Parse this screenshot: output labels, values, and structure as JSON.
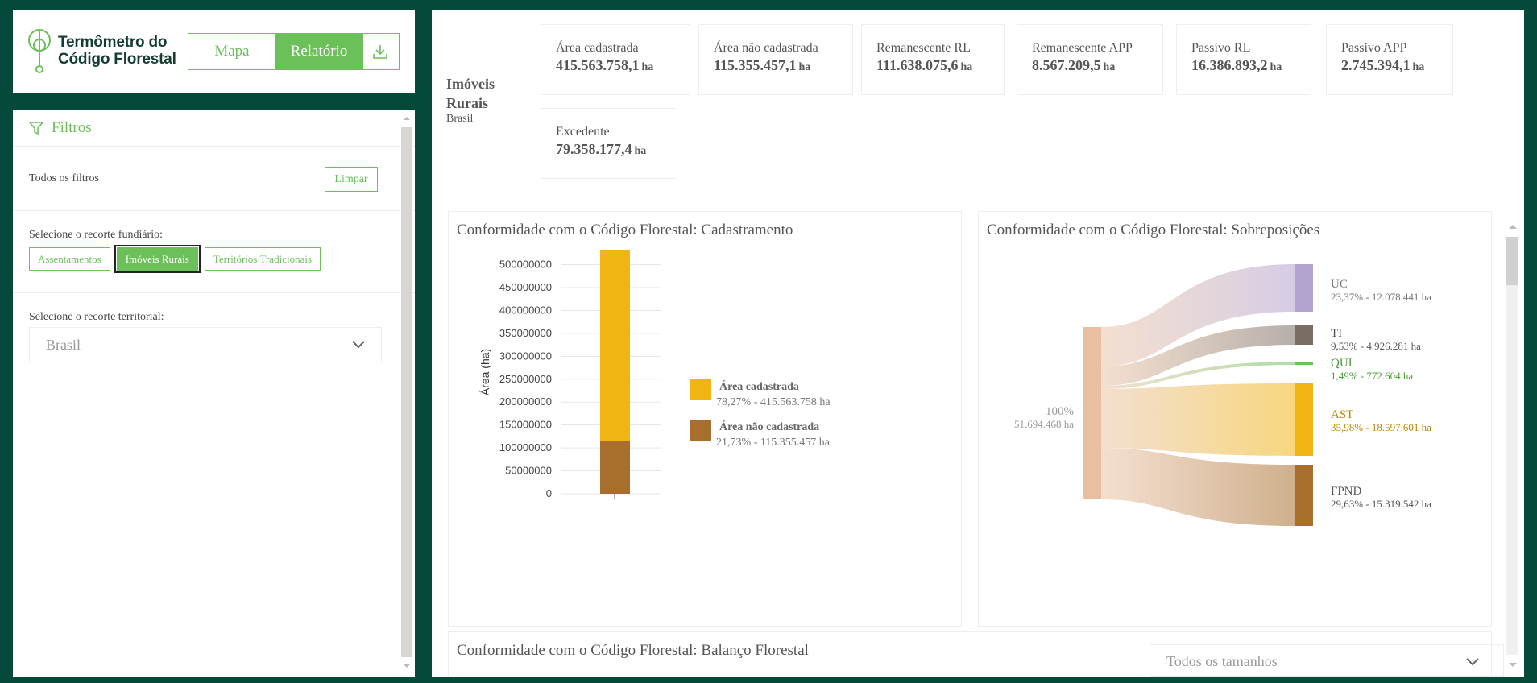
{
  "brand": {
    "name_line1": "Termômetro do",
    "name_line2": "Código Florestal"
  },
  "view_toggle": {
    "mapa": "Mapa",
    "relatorio": "Relatório"
  },
  "colors": {
    "accent": "#6cc05a",
    "frame": "#05493a",
    "cadastrada": "#f0b512",
    "nao_cadastrada": "#a86e2e"
  },
  "filters": {
    "title": "Filtros",
    "all_label": "Todos os filtros",
    "clear_label": "Limpar",
    "fundiario_label": "Selecione o recorte fundiário:",
    "fundiario_options": [
      "Assentamentos",
      "Imóveis Rurais",
      "Territórios Tradicionais"
    ],
    "fundiario_selected": "Imóveis Rurais",
    "territorial_label": "Selecione o recorte territorial:",
    "territorial_value": "Brasil"
  },
  "summary": {
    "entity_name": "Imóveis Rurais",
    "entity_sub": "Brasil",
    "unit": "ha",
    "stats": [
      {
        "label": "Área cadastrada",
        "value": "415.563.758,1"
      },
      {
        "label": "Área não cadastrada",
        "value": "115.355.457,1"
      },
      {
        "label": "Remanescente RL",
        "value": "111.638.075,6"
      },
      {
        "label": "Remanescente APP",
        "value": "8.567.209,5"
      },
      {
        "label": "Passivo RL",
        "value": "16.386.893,2"
      },
      {
        "label": "Passivo APP",
        "value": "2.745.394,1"
      },
      {
        "label": "Excedente",
        "value": "79.358.177,4"
      }
    ]
  },
  "cadastro_card": {
    "title": "Conformidade com o Código Florestal: Cadastramento",
    "legend": [
      {
        "name": "Área cadastrada",
        "detail": "78,27% - 415.563.758 ha"
      },
      {
        "name": "Área não cadastrada",
        "detail": "21,73% - 115.355.457 ha"
      }
    ]
  },
  "sobreposicoes_card": {
    "title": "Conformidade com o Código Florestal: Sobreposições",
    "source_pct": "100%",
    "source_value": "51.694.468 ha",
    "targets": [
      {
        "name": "UC",
        "detail": "23,37% - 12.078.441 ha",
        "color": "#b3a4cf",
        "text_color": "#777777"
      },
      {
        "name": "TI",
        "detail": "9,53% - 4.926.281 ha",
        "color": "#7a6d63",
        "text_color": "#555555"
      },
      {
        "name": "QUI",
        "detail": "1,49% - 772.604 ha",
        "color": "#6cc05a",
        "text_color": "#4e9a3a"
      },
      {
        "name": "AST",
        "detail": "35,98% - 18.597.601 ha",
        "color": "#f0b512",
        "text_color": "#b88a00"
      },
      {
        "name": "FPND",
        "detail": "29,63% - 15.319.542 ha",
        "color": "#a86e2e",
        "text_color": "#555555"
      }
    ]
  },
  "balanco_card": {
    "title": "Conformidade com o Código Florestal: Balanço Florestal",
    "size_select": "Todos os tamanhos"
  },
  "chart_data": {
    "type": "bar",
    "categories": [
      ""
    ],
    "series": [
      {
        "name": "Área não cadastrada",
        "values": [
          115355457
        ]
      },
      {
        "name": "Área cadastrada",
        "values": [
          415563758
        ]
      }
    ],
    "stacked": true,
    "ylabel": "Área (ha)",
    "ylim": [
      0,
      530919215
    ],
    "yticks": [
      0,
      50000000,
      100000000,
      150000000,
      200000000,
      250000000,
      300000000,
      350000000,
      400000000,
      450000000,
      500000000
    ],
    "ytick_labels": [
      "0",
      "50000000",
      "100000000",
      "150000000",
      "200000000",
      "250000000",
      "300000000",
      "350000000",
      "400000000",
      "450000000",
      "500000000"
    ]
  }
}
